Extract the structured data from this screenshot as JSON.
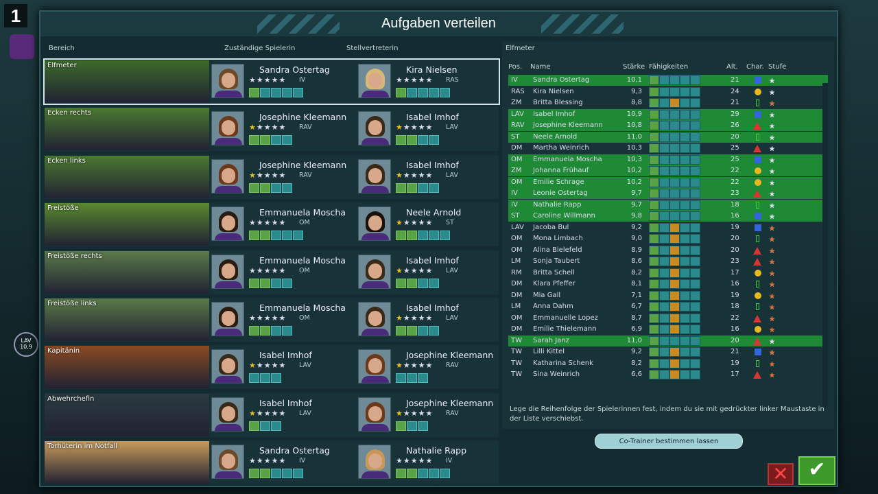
{
  "title": "Aufgaben verteilen",
  "headers": {
    "area": "Bereich",
    "responsible": "Zuständige Spielerin",
    "deputy": "Stellvertreterin",
    "right_title": "Elfmeter"
  },
  "tasks": [
    {
      "label": "Elfmeter",
      "scene": "#3c6a2a",
      "p1": {
        "name": "Sandra Ostertag",
        "pos": "IV",
        "stars": 0,
        "hair": "#6b4a2a"
      },
      "p2": {
        "name": "Kira Nielsen",
        "pos": "RAS",
        "stars": 0,
        "hair": "#d8b878"
      }
    },
    {
      "label": "Ecken rechts",
      "scene": "#4a7a30",
      "p1": {
        "name": "Josephine Kleemann",
        "pos": "RAV",
        "stars": 1,
        "hair": "#6b3a1a"
      },
      "p2": {
        "name": "Isabel Imhof",
        "pos": "LAV",
        "stars": 1,
        "hair": "#3a2a1a"
      }
    },
    {
      "label": "Ecken links",
      "scene": "#4a7a30",
      "p1": {
        "name": "Josephine Kleemann",
        "pos": "RAV",
        "stars": 1,
        "hair": "#6b3a1a"
      },
      "p2": {
        "name": "Isabel Imhof",
        "pos": "LAV",
        "stars": 1,
        "hair": "#3a2a1a"
      }
    },
    {
      "label": "Freistöße",
      "scene": "#5a8a30",
      "p1": {
        "name": "Emmanuela Moscha",
        "pos": "OM",
        "stars": 0,
        "hair": "#2a1a10"
      },
      "p2": {
        "name": "Neele Arnold",
        "pos": "ST",
        "stars": 1,
        "hair": "#1a1008"
      }
    },
    {
      "label": "Freistöße rechts",
      "scene": "#5a7a4a",
      "p1": {
        "name": "Emmanuela Moscha",
        "pos": "OM",
        "stars": 0,
        "hair": "#2a1a10"
      },
      "p2": {
        "name": "Isabel Imhof",
        "pos": "LAV",
        "stars": 1,
        "hair": "#3a2a1a"
      }
    },
    {
      "label": "Freistöße links",
      "scene": "#5a7a4a",
      "p1": {
        "name": "Emmanuela Moscha",
        "pos": "OM",
        "stars": 0,
        "hair": "#2a1a10"
      },
      "p2": {
        "name": "Isabel Imhof",
        "pos": "LAV",
        "stars": 1,
        "hair": "#3a2a1a"
      }
    },
    {
      "label": "Kapitänin",
      "scene": "#8a4a22",
      "p1": {
        "name": "Isabel Imhof",
        "pos": "LAV",
        "stars": 1,
        "hair": "#3a2a1a"
      },
      "p2": {
        "name": "Josephine Kleemann",
        "pos": "RAV",
        "stars": 1,
        "hair": "#6b3a1a"
      }
    },
    {
      "label": "Abwehrchefin",
      "scene": "#2a3a40",
      "p1": {
        "name": "Isabel Imhof",
        "pos": "LAV",
        "stars": 1,
        "hair": "#3a2a1a"
      },
      "p2": {
        "name": "Josephine Kleemann",
        "pos": "RAV",
        "stars": 1,
        "hair": "#6b3a1a"
      }
    },
    {
      "label": "Torhüterin im Notfall",
      "scene": "#c89a5a",
      "p1": {
        "name": "Sandra Ostertag",
        "pos": "IV",
        "stars": 0,
        "hair": "#6b4a2a"
      },
      "p2": {
        "name": "Nathalie Rapp",
        "pos": "IV",
        "stars": 0,
        "hair": "#c89858"
      }
    }
  ],
  "table_headers": {
    "pos": "Pos.",
    "name": "Name",
    "strength": "Stärke",
    "skills": "Fähigkeiten",
    "age": "Alt.",
    "char": "Char.",
    "level": "Stufe"
  },
  "players": [
    {
      "pos": "IV",
      "name": "Sandra Ostertag",
      "str": "10,1",
      "age": "21",
      "g": 1,
      "char": "sq",
      "cc": "#3366dd",
      "gold": 0,
      "orange": 0
    },
    {
      "pos": "RAS",
      "name": "Kira Nielsen",
      "str": "9,3",
      "age": "24",
      "g": 0,
      "char": "ci",
      "cc": "#e8b820",
      "gold": 0,
      "orange": 0
    },
    {
      "pos": "ZM",
      "name": "Britta Blessing",
      "str": "8,8",
      "age": "21",
      "g": 0,
      "char": "bar",
      "cc": "#4c4",
      "gold": 0,
      "orange": 1
    },
    {
      "pos": "LAV",
      "name": "Isabel Imhof",
      "str": "10,9",
      "age": "29",
      "g": 1,
      "char": "sq",
      "cc": "#3366dd",
      "gold": 1,
      "orange": 0
    },
    {
      "pos": "RAV",
      "name": "Josephine Kleemann",
      "str": "10,8",
      "age": "26",
      "g": 1,
      "char": "tri",
      "cc": "#dd3333",
      "gold": 1,
      "orange": 0
    },
    {
      "pos": "ST",
      "name": "Neele Arnold",
      "str": "11,0",
      "age": "20",
      "g": 1,
      "char": "bar",
      "cc": "#4c4",
      "gold": 1,
      "orange": 0
    },
    {
      "pos": "DM",
      "name": "Martha Weinrich",
      "str": "10,3",
      "age": "25",
      "g": 0,
      "char": "tri",
      "cc": "#dd3333",
      "gold": 0,
      "orange": 0
    },
    {
      "pos": "OM",
      "name": "Emmanuela Moscha",
      "str": "10,3",
      "age": "25",
      "g": 1,
      "char": "sq",
      "cc": "#3366dd",
      "gold": 0,
      "orange": 0
    },
    {
      "pos": "ZM",
      "name": "Johanna Frühauf",
      "str": "10,2",
      "age": "22",
      "g": 1,
      "char": "ci",
      "cc": "#e8b820",
      "gold": 0,
      "orange": 0
    },
    {
      "pos": "OM",
      "name": "Emilie Schrage",
      "str": "10,2",
      "age": "22",
      "g": 1,
      "char": "ci",
      "cc": "#e8b820",
      "gold": 0,
      "orange": 0
    },
    {
      "pos": "IV",
      "name": "Leonie Ostertag",
      "str": "9,7",
      "age": "23",
      "g": 1,
      "char": "tri",
      "cc": "#dd3333",
      "gold": 0,
      "orange": 0
    },
    {
      "pos": "IV",
      "name": "Nathalie Rapp",
      "str": "9,7",
      "age": "18",
      "g": 1,
      "char": "bar",
      "cc": "#4c4",
      "gold": 0,
      "orange": 0
    },
    {
      "pos": "ST",
      "name": "Caroline Willmann",
      "str": "9,8",
      "age": "16",
      "g": 1,
      "char": "sq",
      "cc": "#3366dd",
      "gold": 0,
      "orange": 0
    },
    {
      "pos": "LAV",
      "name": "Jacoba Bul",
      "str": "9,2",
      "age": "19",
      "g": 0,
      "char": "sq",
      "cc": "#3366dd",
      "gold": 0,
      "orange": 1
    },
    {
      "pos": "OM",
      "name": "Mona Limbach",
      "str": "9,0",
      "age": "20",
      "g": 0,
      "char": "bar",
      "cc": "#4c4",
      "gold": 0,
      "orange": 1
    },
    {
      "pos": "OM",
      "name": "Alina Bielefeld",
      "str": "8,9",
      "age": "20",
      "g": 0,
      "char": "tri",
      "cc": "#dd3333",
      "gold": 0,
      "orange": 1
    },
    {
      "pos": "LM",
      "name": "Sonja Taubert",
      "str": "8,6",
      "age": "23",
      "g": 0,
      "char": "tri",
      "cc": "#dd3333",
      "gold": 0,
      "orange": 1
    },
    {
      "pos": "RM",
      "name": "Britta Schell",
      "str": "8,2",
      "age": "17",
      "g": 0,
      "char": "ci",
      "cc": "#e8b820",
      "gold": 0,
      "orange": 2
    },
    {
      "pos": "DM",
      "name": "Klara Pfeffer",
      "str": "8,1",
      "age": "16",
      "g": 0,
      "char": "bar",
      "cc": "#4c4",
      "gold": 0,
      "orange": 2
    },
    {
      "pos": "DM",
      "name": "Mia Gall",
      "str": "7,1",
      "age": "19",
      "g": 0,
      "char": "ci",
      "cc": "#e8b820",
      "gold": 0,
      "orange": 3
    },
    {
      "pos": "LM",
      "name": "Anna Dahm",
      "str": "6,7",
      "age": "18",
      "g": 0,
      "char": "bar",
      "cc": "#4c4",
      "gold": 0,
      "orange": 3
    },
    {
      "pos": "OM",
      "name": "Emmanuelle Lopez",
      "str": "8,7",
      "age": "22",
      "g": 0,
      "char": "tri",
      "cc": "#dd3333",
      "gold": 0,
      "orange": 2
    },
    {
      "pos": "DM",
      "name": "Emilie Thielemann",
      "str": "6,9",
      "age": "16",
      "g": 0,
      "char": "ci",
      "cc": "#e8b820",
      "gold": 0,
      "orange": 3
    },
    {
      "pos": "TW",
      "name": "Sarah Janz",
      "str": "11,0",
      "age": "20",
      "g": 1,
      "char": "tri",
      "cc": "#dd3333",
      "gold": 1,
      "orange": 0
    },
    {
      "pos": "TW",
      "name": "Lilli Kittel",
      "str": "9,2",
      "age": "21",
      "g": 0,
      "char": "sq",
      "cc": "#3366dd",
      "gold": 0,
      "orange": 1
    },
    {
      "pos": "TW",
      "name": "Katharina Schenk",
      "str": "8,2",
      "age": "19",
      "g": 0,
      "char": "bar",
      "cc": "#4c4",
      "gold": 0,
      "orange": 2
    },
    {
      "pos": "TW",
      "name": "Sina Weinrich",
      "str": "6,6",
      "age": "17",
      "g": 0,
      "char": "tri",
      "cc": "#dd3333",
      "gold": 0,
      "orange": 3
    }
  ],
  "hint": "Lege die Reihenfolge der Spielerinnen fest, indem du sie mit gedrückter linker Maustaste in der Liste verschiebst.",
  "cotrainer": "Co-Trainer bestimmen lassen",
  "bg": {
    "num": "1",
    "lav": "LAV",
    "lavval": "10,9"
  }
}
